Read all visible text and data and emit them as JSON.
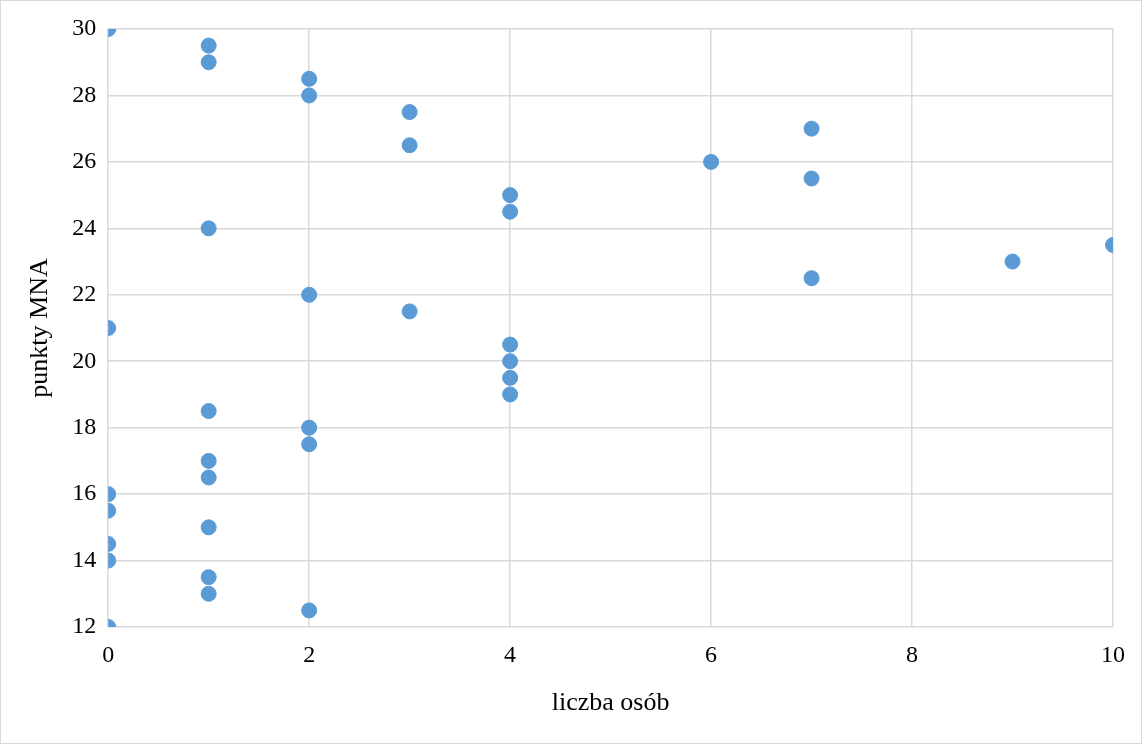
{
  "chart_data": {
    "type": "scatter",
    "xlabel": "liczba osób",
    "ylabel": "punkty MNA",
    "x": [
      0,
      0,
      0,
      0,
      0,
      0,
      0,
      1,
      1,
      1,
      1,
      1,
      1,
      1,
      1,
      1,
      2,
      2,
      2,
      2,
      2,
      2,
      3,
      3,
      3,
      4,
      4,
      4,
      4,
      4,
      4,
      6,
      7,
      7,
      7,
      9,
      10
    ],
    "values": [
      30,
      21,
      16,
      15.5,
      14.5,
      14,
      12,
      29.5,
      29,
      24,
      18.5,
      17,
      16.5,
      15,
      13.5,
      13,
      28.5,
      28,
      22,
      18,
      17.5,
      12.5,
      27.5,
      26.5,
      21.5,
      25,
      24.5,
      20.5,
      20,
      19.5,
      19,
      26,
      27,
      25.5,
      22.5,
      23,
      23.5
    ],
    "color": "#5b9bd5",
    "marker": "circle",
    "xlim": [
      0,
      10
    ],
    "xticks": [
      0,
      2,
      4,
      6,
      8,
      10
    ],
    "ylim": [
      12,
      30
    ],
    "yticks": [
      12,
      14,
      16,
      18,
      20,
      22,
      24,
      26,
      28,
      30
    ],
    "grid": true,
    "legend": false
  }
}
